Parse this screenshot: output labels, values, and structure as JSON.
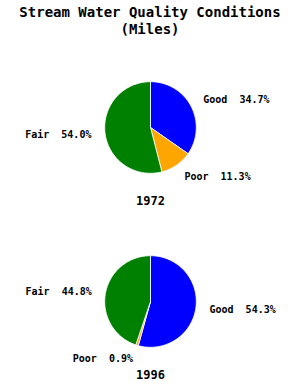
{
  "chart_data": [
    {
      "type": "pie",
      "title": "Stream Water Quality Conditions\n(Miles)",
      "subtitle": "1972",
      "categories": [
        "Good",
        "Poor",
        "Fair"
      ],
      "values": [
        34.7,
        11.3,
        54.0
      ],
      "value_labels": [
        "Good  34.7%",
        "Poor  11.3%",
        "Fair  54.0%"
      ],
      "colors": [
        "#0000ff",
        "#ffa500",
        "#008000"
      ],
      "data_labels": true
    },
    {
      "type": "pie",
      "subtitle": "1996",
      "categories": [
        "Good",
        "Poor",
        "Fair"
      ],
      "values": [
        54.3,
        0.9,
        44.8
      ],
      "value_labels": [
        "Good  54.3%",
        "Poor  0.9%",
        "Fair  44.8%"
      ],
      "colors": [
        "#0000ff",
        "#ffa500",
        "#008000"
      ],
      "data_labels": true
    }
  ]
}
